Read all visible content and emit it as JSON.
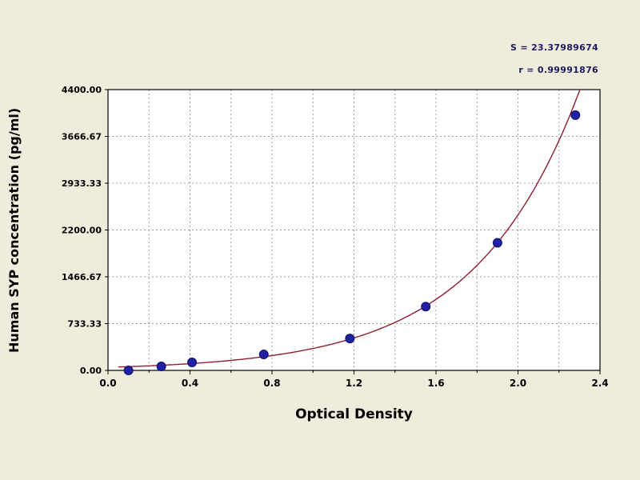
{
  "chart_data": {
    "type": "scatter",
    "title": "",
    "xlabel": "Optical Density",
    "ylabel": "Human SYP concentration (pg/ml)",
    "xlim": [
      0,
      2.4
    ],
    "ylim": [
      0,
      4400
    ],
    "xticks": [
      0.0,
      0.4,
      0.8,
      1.2,
      1.6,
      2.0,
      2.4
    ],
    "xtick_labels": [
      "0.0",
      "0.4",
      "0.8",
      "1.2",
      "1.6",
      "2.0",
      "2.4"
    ],
    "yticks": [
      0,
      733.33,
      1466.67,
      2200,
      2933.33,
      3666.67,
      4400
    ],
    "ytick_labels": [
      "0.00",
      "733.33",
      "1466.67",
      "2200.00",
      "2933.33",
      "3666.67",
      "4400.00"
    ],
    "x_minor_step": 0.2,
    "grid": "dashed",
    "annotation_s": "S = 23.37989674",
    "annotation_r": "r = 0.99991876",
    "points": [
      {
        "od": 0.1,
        "conc": 0
      },
      {
        "od": 0.26,
        "conc": 62.5
      },
      {
        "od": 0.41,
        "conc": 125
      },
      {
        "od": 0.76,
        "conc": 250
      },
      {
        "od": 1.18,
        "conc": 500
      },
      {
        "od": 1.55,
        "conc": 1000
      },
      {
        "od": 1.9,
        "conc": 2000
      },
      {
        "od": 2.28,
        "conc": 4000
      }
    ],
    "fit_type": "exponential",
    "colors": {
      "curve": "#8e1e30",
      "marker": "#2020a0",
      "marker_edge": "#12126e",
      "grid": "#9c9c9c",
      "plot_bg": "#ffffff",
      "page_bg": "#efecdc",
      "border": "#000000",
      "text": "#000000",
      "annotation": "#1b1b5e"
    }
  }
}
